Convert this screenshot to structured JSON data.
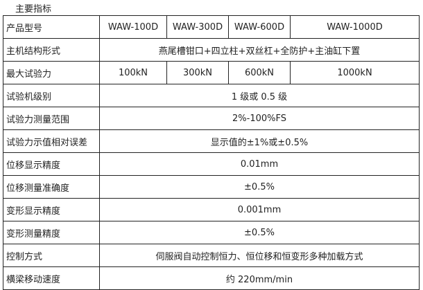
{
  "title": "主要指标",
  "models": {
    "label": "产品型号",
    "values": [
      "WAW-100D",
      "WAW-300D",
      "WAW-600D",
      "WAW-1000D"
    ]
  },
  "structure": {
    "label": "主机结构形式",
    "value": "燕尾槽钳口+四立柱+双丝杠+全防护+主油缸下置"
  },
  "max_force": {
    "label": "最大试验力",
    "values": [
      "100kN",
      "300kN",
      "600kN",
      "1000kN"
    ]
  },
  "rows": [
    {
      "label": "试验机级别",
      "value": "1 级或 0.5 级"
    },
    {
      "label": "试验力测量范围",
      "value": "2%-100%FS"
    },
    {
      "label": "试验力示值相对误差",
      "value": "显示值的±1%或±0.5%"
    },
    {
      "label": "位移显示精度",
      "value": "0.01mm"
    },
    {
      "label": "位移测量准确度",
      "value": "±0.5%"
    },
    {
      "label": "变形显示精度",
      "value": "0.001mm"
    },
    {
      "label": "变形测量精度",
      "value": "±0.5%"
    },
    {
      "label": "控制方式",
      "value": "伺服阀自动控制恒力、恒位移和恒变形多种加载方式"
    },
    {
      "label": "横梁移动速度",
      "value": "约 220mm/min"
    }
  ]
}
